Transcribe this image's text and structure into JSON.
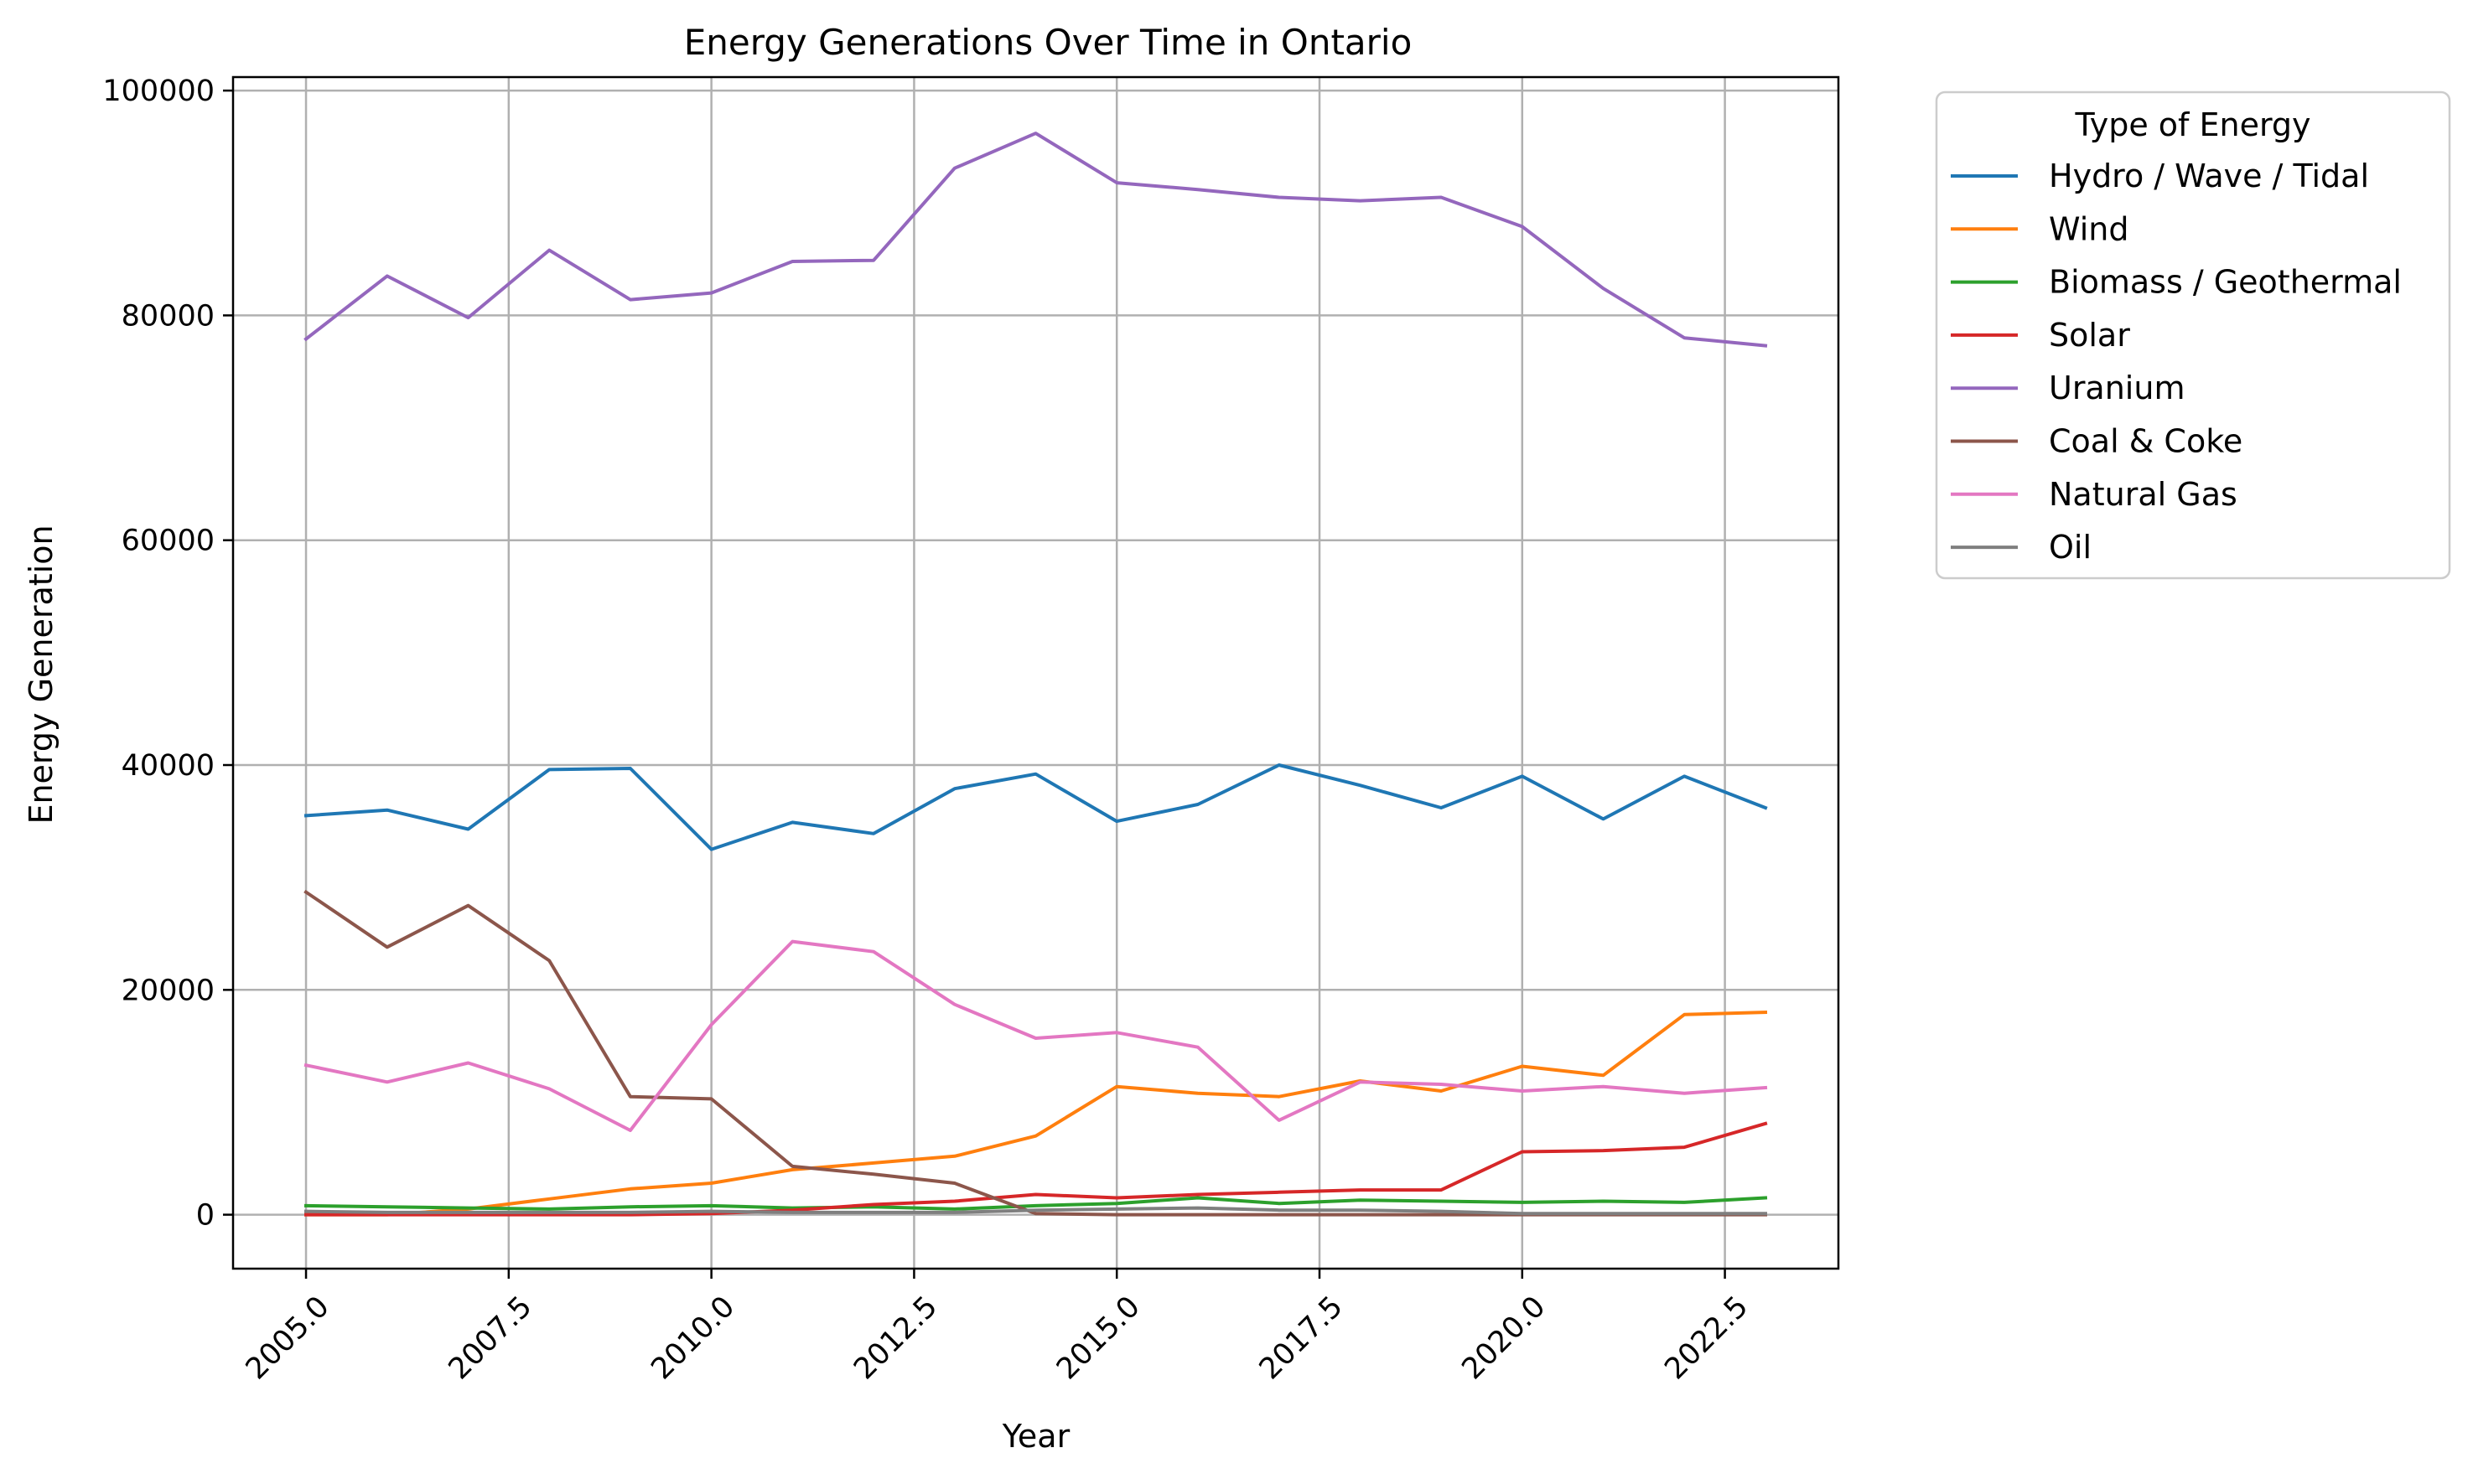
{
  "chart_data": {
    "type": "line",
    "title": "Energy Generations Over Time in Ontario",
    "xlabel": "Year",
    "ylabel": "Energy Generation",
    "xlim": [
      2004.1,
      2023.9
    ],
    "ylim": [
      -4800,
      101200
    ],
    "x_ticks": [
      2005.0,
      2007.5,
      2010.0,
      2012.5,
      2015.0,
      2017.5,
      2020.0,
      2022.5
    ],
    "x_tick_labels": [
      "2005.0",
      "2007.5",
      "2010.0",
      "2012.5",
      "2015.0",
      "2017.5",
      "2020.0",
      "2022.5"
    ],
    "y_ticks": [
      0,
      20000,
      40000,
      60000,
      80000,
      100000
    ],
    "y_tick_labels": [
      "0",
      "20000",
      "40000",
      "60000",
      "80000",
      "100000"
    ],
    "grid": true,
    "legend": {
      "title": "Type of Energy",
      "placement": "outside-upper-right"
    },
    "x": [
      2005,
      2006,
      2007,
      2008,
      2009,
      2010,
      2011,
      2012,
      2013,
      2014,
      2015,
      2016,
      2017,
      2018,
      2019,
      2020,
      2021,
      2022,
      2023
    ],
    "series": [
      {
        "name": "Hydro / Wave / Tidal",
        "color": "#1f77b4",
        "values": [
          35500,
          36000,
          34300,
          39600,
          39700,
          32500,
          34900,
          33900,
          37900,
          39200,
          35000,
          36500,
          40000,
          38200,
          36200,
          39000,
          35200,
          39000,
          36200
        ]
      },
      {
        "name": "Wind",
        "color": "#ff7f0e",
        "values": [
          0,
          0,
          500,
          1400,
          2300,
          2800,
          4000,
          4600,
          5200,
          7000,
          11400,
          10800,
          10500,
          11900,
          11000,
          13200,
          12400,
          17800,
          18000
        ]
      },
      {
        "name": "Biomass / Geothermal",
        "color": "#2ca02c",
        "values": [
          800,
          700,
          600,
          500,
          700,
          800,
          600,
          700,
          500,
          800,
          1000,
          1500,
          1000,
          1300,
          1200,
          1100,
          1200,
          1100,
          1500
        ]
      },
      {
        "name": "Solar",
        "color": "#d62728",
        "values": [
          0,
          0,
          0,
          0,
          0,
          100,
          400,
          900,
          1200,
          1800,
          1500,
          1800,
          2000,
          2200,
          2200,
          5600,
          5700,
          6000,
          8100
        ]
      },
      {
        "name": "Uranium",
        "color": "#9467bd",
        "values": [
          77900,
          83500,
          79800,
          85800,
          81400,
          82000,
          84800,
          84900,
          93100,
          96200,
          91800,
          91200,
          90500,
          90200,
          90500,
          87900,
          82400,
          78000,
          77300
        ]
      },
      {
        "name": "Coal & Coke",
        "color": "#8c564b",
        "values": [
          28700,
          23800,
          27500,
          22600,
          10500,
          10300,
          4300,
          3600,
          2800,
          100,
          0,
          0,
          0,
          0,
          0,
          0,
          0,
          0,
          0
        ]
      },
      {
        "name": "Natural Gas",
        "color": "#e377c2",
        "values": [
          13300,
          11800,
          13500,
          11200,
          7500,
          16900,
          24300,
          23400,
          18700,
          15700,
          16200,
          14900,
          8400,
          11800,
          11600,
          11000,
          11400,
          10800,
          11300
        ]
      },
      {
        "name": "Oil",
        "color": "#7f7f7f",
        "values": [
          300,
          200,
          200,
          200,
          200,
          300,
          200,
          200,
          200,
          400,
          500,
          600,
          400,
          400,
          300,
          100,
          100,
          100,
          100
        ]
      }
    ]
  }
}
